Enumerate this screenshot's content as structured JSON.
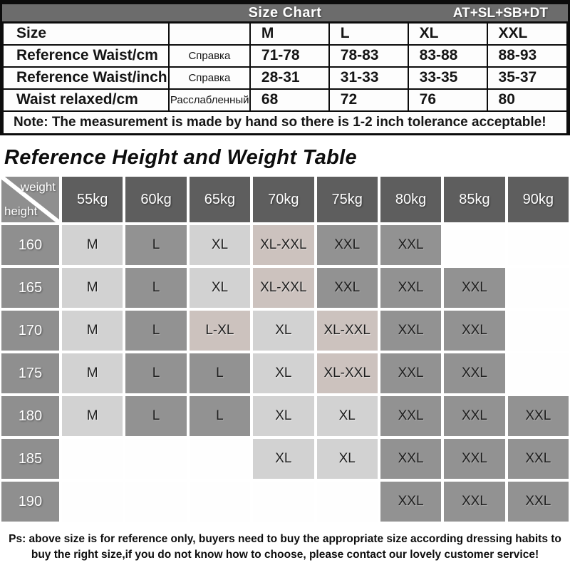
{
  "size_chart": {
    "header": {
      "title": "Size Chart",
      "code": "AT+SL+SB+DT"
    },
    "rows": [
      {
        "label": "Size",
        "ru": "",
        "values": [
          "M",
          "L",
          "XL",
          "XXL"
        ]
      },
      {
        "label": "Reference Waist/cm",
        "ru": "Справка",
        "values": [
          "71-78",
          "78-83",
          "83-88",
          "88-93"
        ]
      },
      {
        "label": "Reference Waist/inch",
        "ru": "Справка",
        "values": [
          "28-31",
          "31-33",
          "33-35",
          "35-37"
        ]
      },
      {
        "label": "Waist relaxed/cm",
        "ru": "Расслабленный",
        "values": [
          "68",
          "72",
          "76",
          "80"
        ]
      }
    ],
    "note": "Note: The measurement is made by hand so there is 1-2 inch tolerance acceptable!"
  },
  "height_weight_table": {
    "title": "Reference Height and Weight Table",
    "corner": {
      "top": "weight",
      "bottom": "height"
    },
    "weights": [
      "55kg",
      "60kg",
      "65kg",
      "70kg",
      "75kg",
      "80kg",
      "85kg",
      "90kg"
    ],
    "heights": [
      "160",
      "165",
      "170",
      "175",
      "180",
      "185",
      "190"
    ],
    "cells": [
      [
        "M",
        "L",
        "XL",
        "XL-XXL",
        "XXL",
        "XXL",
        "",
        ""
      ],
      [
        "M",
        "L",
        "XL",
        "XL-XXL",
        "XXL",
        "XXL",
        "XXL",
        ""
      ],
      [
        "M",
        "L",
        "L-XL",
        "XL",
        "XL-XXL",
        "XXL",
        "XXL",
        ""
      ],
      [
        "M",
        "L",
        "L",
        "XL",
        "XL-XXL",
        "XXL",
        "XXL",
        ""
      ],
      [
        "M",
        "L",
        "L",
        "XL",
        "XL",
        "XXL",
        "XXL",
        "XXL"
      ],
      [
        "",
        "",
        "",
        "XL",
        "XL",
        "XXL",
        "XXL",
        "XXL"
      ],
      [
        "",
        "",
        "",
        "",
        "",
        "XXL",
        "XXL",
        "XXL"
      ]
    ]
  },
  "footer": "Ps: above size is for reference only, buyers need to buy the appropriate size according dressing habits to buy the right size,if you do not know how to choose, please contact our lovely customer service!",
  "colors": {
    "header_bar": "#6c6c6c",
    "grid_header_cell": "#5e5e5e",
    "height_label_cell": "#8f8f8f",
    "size_mid_cell": "#929292",
    "size_light_cell": "#d2d2d2",
    "size_range_cell": "#ccc2be",
    "table_border": "#0c0c0c"
  }
}
